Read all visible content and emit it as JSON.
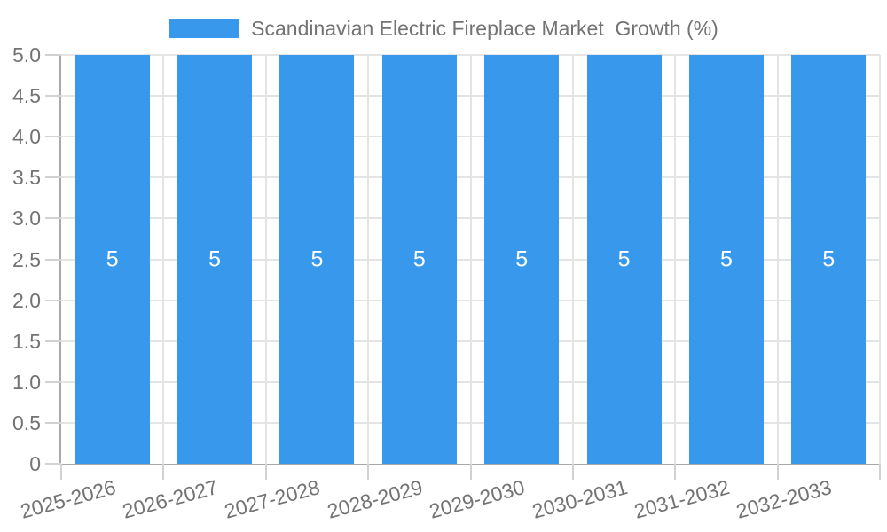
{
  "legend": {
    "label": "Scandinavian Electric Fireplace Market  Growth (%)"
  },
  "chart_data": {
    "type": "bar",
    "title": "",
    "categories": [
      "2025-2026",
      "2026-2027",
      "2027-2028",
      "2028-2029",
      "2029-2030",
      "2030-2031",
      "2031-2032",
      "2032-2033"
    ],
    "series": [
      {
        "name": "Scandinavian Electric Fireplace Market  Growth (%)",
        "values": [
          5,
          5,
          5,
          5,
          5,
          5,
          5,
          5
        ]
      }
    ],
    "value_labels": [
      "5",
      "5",
      "5",
      "5",
      "5",
      "5",
      "5",
      "5"
    ],
    "xlabel": "",
    "ylabel": "",
    "ylim": [
      0,
      5
    ],
    "y_ticks": [
      "0",
      "0.5",
      "1.0",
      "1.5",
      "2.0",
      "2.5",
      "3.0",
      "3.5",
      "4.0",
      "4.5",
      "5.0"
    ],
    "grid": true,
    "legend_position": "top",
    "x_label_rotation_deg": -15,
    "colors": {
      "bar": "#3899EC",
      "grid": "#e4e4e4",
      "axis": "#a9a9a9",
      "tick": "#d2d2d2",
      "text": "#737373",
      "value_label": "#ffffff"
    }
  }
}
